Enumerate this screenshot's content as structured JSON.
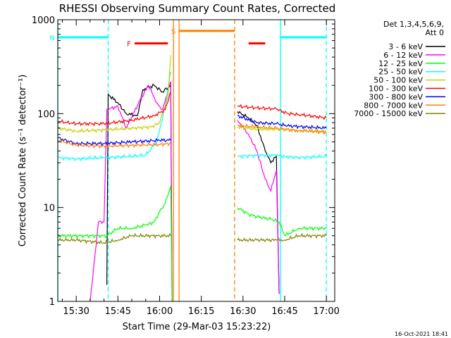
{
  "title": "RHESSI Observing Summary Count Rates, Corrected",
  "footer_date": "16-Oct-2021 18:41",
  "chart_data": {
    "type": "line",
    "title": "RHESSI Observing Summary Count Rates, Corrected",
    "xlabel": "Start Time (29-Mar-03 15:23:22)",
    "ylabel": "Corrected Count Rate (s⁻¹ detector⁻¹)",
    "y_scale": "log",
    "xlim": [
      "15:23:22",
      "17:03:00"
    ],
    "ylim": [
      1,
      1000
    ],
    "x_ticks": [
      "15:30",
      "15:45",
      "16:00",
      "16:15",
      "16:30",
      "16:45",
      "17:00"
    ],
    "y_ticks": [
      "1",
      "10",
      "100",
      "1000"
    ],
    "legend_header": [
      "Det 1,3,4,5,6,9,",
      "Att 0"
    ],
    "legend_position": "right",
    "series": [
      {
        "name": "3 - 6 keV",
        "color": "#000000",
        "segments": [
          [
            [
              "15:41",
              1.5
            ],
            [
              "15:41:30",
              160
            ],
            [
              "15:45",
              130
            ],
            [
              "15:48",
              100
            ],
            [
              "15:52",
              95
            ],
            [
              "15:54",
              180
            ],
            [
              "15:58",
              200
            ],
            [
              "16:01",
              170
            ],
            [
              "16:04",
              200
            ],
            [
              "16:04:30",
              1
            ]
          ],
          [
            [
              "16:28",
              105
            ],
            [
              "16:32",
              90
            ],
            [
              "16:35",
              75
            ],
            [
              "16:38",
              40
            ],
            [
              "16:40",
              30
            ],
            [
              "16:42",
              35
            ],
            [
              "16:43",
              1.2
            ]
          ]
        ]
      },
      {
        "name": "6 - 12 keV",
        "color": "#ff00ff",
        "segments": [
          [
            [
              "15:35",
              1
            ],
            [
              "15:38",
              7
            ],
            [
              "15:40",
              7
            ],
            [
              "15:41",
              110
            ],
            [
              "15:45",
              120
            ],
            [
              "15:48",
              70
            ],
            [
              "15:53",
              140
            ],
            [
              "15:56",
              200
            ],
            [
              "15:59",
              130
            ],
            [
              "16:01",
              110
            ],
            [
              "16:04",
              220
            ],
            [
              "16:04:30",
              1
            ]
          ],
          [
            [
              "16:28",
              85
            ],
            [
              "16:32",
              60
            ],
            [
              "16:35",
              40
            ],
            [
              "16:38",
              20
            ],
            [
              "16:40",
              15
            ],
            [
              "16:42",
              25
            ],
            [
              "16:43",
              1.2
            ]
          ]
        ]
      },
      {
        "name": "12 - 25 keV",
        "color": "#00ff00",
        "segments": [
          [
            [
              "15:23:22",
              5
            ],
            [
              "15:41",
              5
            ],
            [
              "15:45",
              6
            ],
            [
              "15:50",
              6
            ],
            [
              "15:55",
              6.5
            ],
            [
              "15:58",
              7
            ],
            [
              "16:00",
              9
            ],
            [
              "16:02",
              11
            ],
            [
              "16:04",
              17
            ],
            [
              "16:04:30",
              1
            ]
          ],
          [
            [
              "16:28",
              10
            ],
            [
              "16:32",
              8.5
            ],
            [
              "16:35",
              8
            ],
            [
              "16:40",
              7.5
            ],
            [
              "16:43",
              7
            ],
            [
              "16:45",
              5
            ],
            [
              "16:50",
              6
            ],
            [
              "17:00",
              6
            ]
          ]
        ]
      },
      {
        "name": "25 - 50 keV",
        "color": "#00ffff",
        "segments": [
          [
            [
              "15:23:22",
              34
            ],
            [
              "15:30",
              33
            ],
            [
              "15:40",
              34
            ],
            [
              "15:50",
              35
            ],
            [
              "15:55",
              36
            ],
            [
              "15:59",
              50
            ],
            [
              "16:02",
              120
            ],
            [
              "16:04",
              280
            ]
          ],
          [
            [
              "16:28",
              35
            ],
            [
              "16:35",
              36
            ],
            [
              "16:42",
              36
            ],
            [
              "16:45",
              35
            ],
            [
              "16:50",
              34
            ],
            [
              "17:00",
              35
            ]
          ]
        ]
      },
      {
        "name": "50 - 100 keV",
        "color": "#cccc00",
        "segments": [
          [
            [
              "15:23:22",
              70
            ],
            [
              "15:30",
              65
            ],
            [
              "15:40",
              67
            ],
            [
              "15:50",
              70
            ],
            [
              "15:57",
              72
            ],
            [
              "16:00",
              80
            ],
            [
              "16:03",
              150
            ],
            [
              "16:04",
              420
            ]
          ],
          [
            [
              "16:28",
              72
            ],
            [
              "16:35",
              68
            ],
            [
              "16:42",
              68
            ],
            [
              "16:50",
              66
            ],
            [
              "17:00",
              65
            ]
          ]
        ]
      },
      {
        "name": "100 - 300 keV",
        "color": "#ff0000",
        "segments": [
          [
            [
              "15:23:22",
              83
            ],
            [
              "15:30",
              78
            ],
            [
              "15:40",
              78
            ],
            [
              "15:50",
              85
            ],
            [
              "15:58",
              95
            ],
            [
              "16:02",
              110
            ],
            [
              "16:04",
              170
            ]
          ],
          [
            [
              "16:28",
              120
            ],
            [
              "16:35",
              115
            ],
            [
              "16:42",
              112
            ],
            [
              "16:46",
              100
            ],
            [
              "16:50",
              98
            ],
            [
              "17:00",
              90
            ]
          ]
        ]
      },
      {
        "name": "300 - 800 keV",
        "color": "#0000ff",
        "segments": [
          [
            [
              "15:23:22",
              55
            ],
            [
              "15:30",
              48
            ],
            [
              "15:40",
              48
            ],
            [
              "15:50",
              50
            ],
            [
              "16:00",
              52
            ],
            [
              "16:04",
              52
            ]
          ],
          [
            [
              "16:28",
              95
            ],
            [
              "16:35",
              80
            ],
            [
              "16:42",
              78
            ],
            [
              "16:46",
              74
            ],
            [
              "17:00",
              70
            ]
          ]
        ]
      },
      {
        "name": "800 - 7000 keV",
        "color": "#ff8000",
        "segments": [
          [
            [
              "15:23:22",
              52
            ],
            [
              "15:30",
              46
            ],
            [
              "15:40",
              45
            ],
            [
              "15:50",
              46
            ],
            [
              "16:00",
              47
            ],
            [
              "16:04",
              48
            ]
          ],
          [
            [
              "16:28",
              75
            ],
            [
              "16:35",
              72
            ],
            [
              "16:42",
              70
            ],
            [
              "16:50",
              66
            ],
            [
              "17:00",
              63
            ]
          ]
        ]
      },
      {
        "name": "7000 - 15000 keV",
        "color": "#808000",
        "segments": [
          [
            [
              "15:23:22",
              4.5
            ],
            [
              "15:30",
              4.5
            ],
            [
              "15:40",
              4.2
            ],
            [
              "15:45",
              4.5
            ],
            [
              "15:50",
              5
            ],
            [
              "16:00",
              5
            ],
            [
              "16:04",
              5
            ]
          ],
          [
            [
              "16:28",
              4.5
            ],
            [
              "16:35",
              4.5
            ],
            [
              "16:42",
              4.5
            ],
            [
              "16:45",
              4.5
            ],
            [
              "16:50",
              5
            ],
            [
              "17:00",
              5
            ]
          ]
        ]
      }
    ],
    "flags": [
      {
        "label": "N",
        "color": "#00ffff",
        "style": "solid",
        "y": 650,
        "segments": [
          [
            "15:23:22",
            "15:41:30"
          ],
          [
            "16:43:30",
            "17:00"
          ]
        ]
      },
      {
        "label": "F",
        "color": "#ff0000",
        "style": "solid",
        "y": 560,
        "segments": [
          [
            "15:51",
            "16:03"
          ],
          [
            "16:32",
            "16:38"
          ]
        ]
      },
      {
        "label": "S",
        "color": "#ff8000",
        "style": "solid",
        "y": 760,
        "segments": [
          [
            "16:07",
            "16:27"
          ]
        ]
      }
    ],
    "markers": [
      {
        "color": "#00ffff",
        "style": "dashed",
        "x": "15:41:30"
      },
      {
        "color": "#00ffff",
        "style": "solid",
        "x": "15:23:22"
      },
      {
        "color": "#00ffff",
        "style": "solid",
        "x": "16:43:30"
      },
      {
        "color": "#00ffff",
        "style": "dashed",
        "x": "17:00"
      },
      {
        "color": "#ff8000",
        "style": "solid",
        "x": "16:05"
      },
      {
        "color": "#ff8000",
        "style": "solid",
        "x": "16:07"
      },
      {
        "color": "#ff8000",
        "style": "dashed",
        "x": "16:27"
      }
    ]
  }
}
